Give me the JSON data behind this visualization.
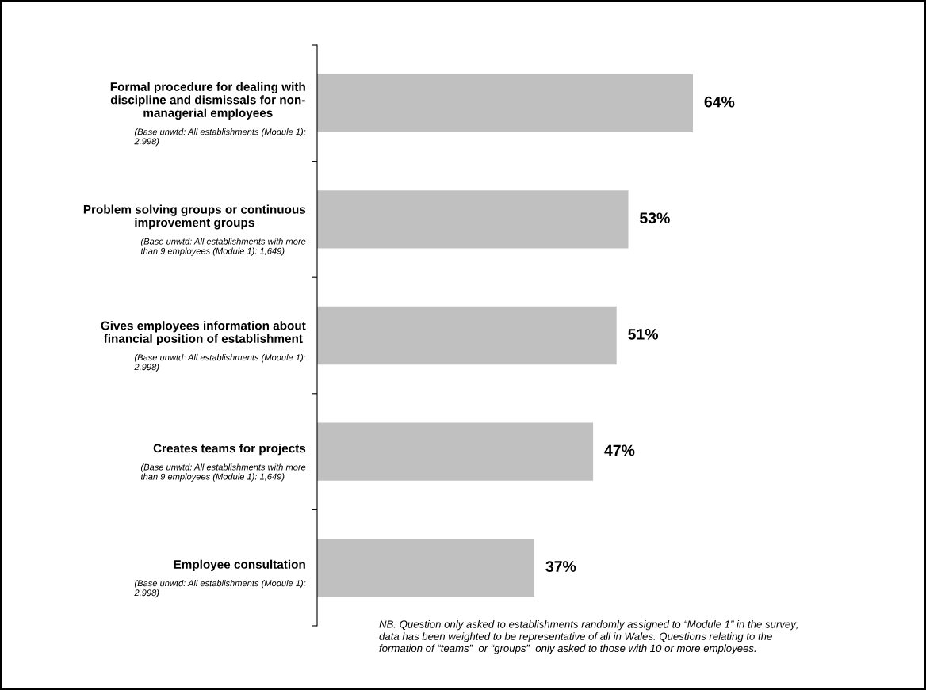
{
  "chart_data": {
    "type": "bar",
    "orientation": "horizontal",
    "categories": [
      "Formal procedure for dealing with\ndiscipline and dismissals for non-\nmanagerial employees",
      "Problem solving groups or continuous\nimprovement groups",
      "Gives employees information about\nfinancial position of establishment",
      "Creates teams for projects",
      "Employee consultation"
    ],
    "values": [
      64,
      53,
      51,
      47,
      37
    ],
    "value_labels": [
      "64%",
      "53%",
      "51%",
      "47%",
      "37%"
    ],
    "color": "#c0c0c0",
    "tick_labels": "y",
    "annotations": [
      "(Base unwtd: All establishments (Module 1):\n2,998)",
      "(Base unwtd: All establishments with more\nthan 9 employees (Module 1): 1,649)",
      "(Base unwtd: All establishments (Module 1):\n2,998)",
      "(Base unwtd: All establishments with more\nthan 9 employees (Module 1): 1,649)",
      "(Base unwtd: All establishments (Module 1):\n2,998)",
      "NB. Question only asked to establishments randomly assigned to “Module 1” in the survey;\ndata has been weighted to be representative of all in Wales. Questions relating to the\nformation of “teams”  or “groups”  only asked to those with 10 or more employees."
    ]
  }
}
